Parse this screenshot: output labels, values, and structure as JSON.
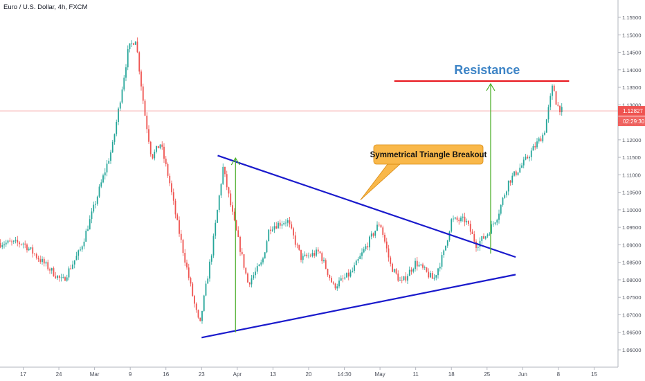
{
  "header": {
    "symbol_line": "Euro / U.S. Dollar, 4h, FXCM"
  },
  "price_axis": {
    "ticks": [
      "1.15500",
      "1.15000",
      "1.14500",
      "1.14000",
      "1.13500",
      "1.13000",
      "1.12500",
      "1.12000",
      "1.11500",
      "1.11000",
      "1.10500",
      "1.10000",
      "1.09500",
      "1.09000",
      "1.08500",
      "1.08000",
      "1.07500",
      "1.07000",
      "1.06500",
      "1.06000"
    ],
    "current_price": "1.12827",
    "countdown": "02:29:30",
    "current_price_color": "#ef5350"
  },
  "time_axis": {
    "ticks": [
      "17",
      "24",
      "Mar",
      "9",
      "16",
      "23",
      "Apr",
      "13",
      "20",
      "14:30",
      "May",
      "11",
      "18",
      "25",
      "Jun",
      "8",
      "15"
    ]
  },
  "annotations": {
    "resistance_label": "Resistance",
    "callout_label": "Symmetrical Triangle  Breakout"
  },
  "colors": {
    "up": "#26a69a",
    "down": "#ef5350",
    "resistance": "#e8141b",
    "trendline": "#1a1acc",
    "target_arrow": "#4caf2a",
    "callout_fill": "#f9b84a",
    "resistance_text": "#3d84c6"
  },
  "chart_data": {
    "type": "candlestick",
    "symbol": "EURUSD",
    "timeframe": "4h",
    "ylim": [
      1.0555,
      1.1605
    ],
    "x_ticks": [
      "17",
      "24",
      "Mar",
      "9",
      "16",
      "23",
      "Apr",
      "13",
      "20",
      "14:30",
      "May",
      "11",
      "18",
      "25",
      "Jun",
      "8",
      "15"
    ],
    "price_path": {
      "x_tick_index": [
        0,
        1.1,
        1.6,
        1.9,
        2.5,
        2.95,
        3.15,
        3.4,
        3.6,
        3.85,
        4.1,
        4.3,
        4.8,
        4.95,
        5.0,
        5.3,
        5.6,
        5.9,
        6.3,
        6.7,
        6.9,
        7.4,
        7.8,
        8.3,
        8.7,
        9.2,
        9.8,
        10.0,
        10.3,
        10.6,
        11.0,
        11.5,
        11.8,
        12.0,
        12.4,
        12.7,
        13.0,
        13.3,
        13.6,
        14.0,
        14.6,
        14.85,
        14.95,
        15.1
      ],
      "close": [
        1.0905,
        1.0795,
        1.0885,
        1.098,
        1.118,
        1.146,
        1.149,
        1.128,
        1.115,
        1.119,
        1.108,
        1.097,
        1.073,
        1.0665,
        1.0705,
        1.089,
        1.112,
        1.097,
        1.079,
        1.085,
        1.095,
        1.097,
        1.086,
        1.088,
        1.078,
        1.082,
        1.093,
        1.0965,
        1.084,
        1.079,
        1.085,
        1.08,
        1.088,
        1.097,
        1.097,
        1.09,
        1.093,
        1.0985,
        1.108,
        1.113,
        1.122,
        1.136,
        1.13,
        1.1283
      ]
    },
    "trendlines": [
      {
        "name": "upper",
        "from": {
          "x_tick_index": 5.45,
          "y": 1.1155
        },
        "to": {
          "x_tick_index": 13.8,
          "y": 1.0865
        }
      },
      {
        "name": "lower",
        "from": {
          "x_tick_index": 5.0,
          "y": 1.0635
        },
        "to": {
          "x_tick_index": 13.8,
          "y": 1.0815
        }
      }
    ],
    "resistance": {
      "y": 1.1368,
      "from_x_tick_index": 10.4,
      "to_x_tick_index": 15.3
    },
    "current_price_line": 1.12827,
    "target_arrows": [
      {
        "x_tick_index": 5.95,
        "from_y": 1.065,
        "to_y": 1.1148
      },
      {
        "x_tick_index": 13.1,
        "from_y": 1.0875,
        "to_y": 1.136
      }
    ],
    "grid": false,
    "legend": "none"
  }
}
